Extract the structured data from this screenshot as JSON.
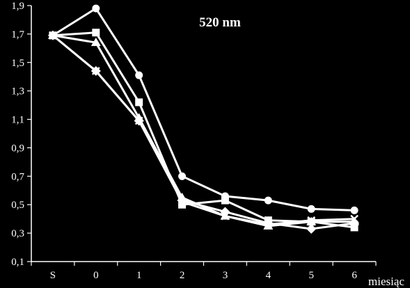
{
  "chart_data": {
    "type": "line",
    "title": "520 nm",
    "xlabel": "miesiąc",
    "ylabel": "",
    "categories": [
      "S",
      "0",
      "1",
      "2",
      "3",
      "4",
      "5",
      "6"
    ],
    "y_tick_labels": [
      "0,1",
      "0,3",
      "0,5",
      "0,7",
      "0,9",
      "1,1",
      "1,3",
      "1,5",
      "1,7",
      "1,9"
    ],
    "ylim": [
      0.1,
      1.9
    ],
    "grid": false,
    "legend": "none",
    "series": [
      {
        "marker": "circle",
        "values": [
          1.69,
          1.88,
          1.41,
          0.7,
          0.56,
          0.53,
          0.47,
          0.46
        ]
      },
      {
        "marker": "square",
        "values": [
          1.69,
          1.71,
          1.22,
          0.5,
          0.53,
          0.39,
          0.38,
          0.34
        ]
      },
      {
        "marker": "triangle",
        "values": [
          1.69,
          1.64,
          1.11,
          0.55,
          0.42,
          0.35,
          0.38,
          0.38
        ]
      },
      {
        "marker": "diamond",
        "values": [
          1.69,
          1.44,
          1.09,
          0.53,
          0.45,
          0.37,
          0.33,
          0.37
        ]
      },
      {
        "marker": "cross",
        "values": [
          1.69,
          1.44,
          1.09,
          0.52,
          0.42,
          0.36,
          0.39,
          0.4
        ]
      }
    ],
    "colors": {
      "background": "#000000",
      "foreground": "#ffffff"
    }
  }
}
